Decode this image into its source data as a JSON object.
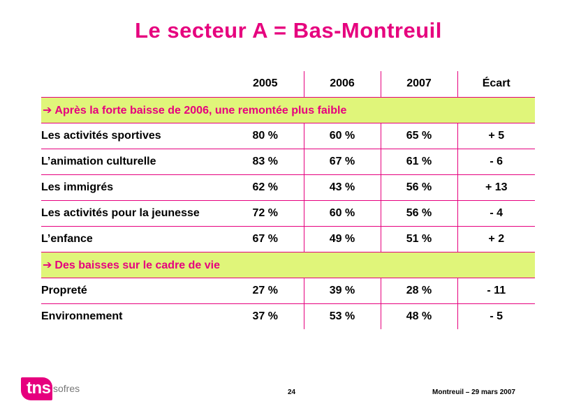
{
  "title": "Le secteur A = Bas-Montreuil",
  "table": {
    "headers": [
      "2005",
      "2006",
      "2007",
      "Écart"
    ],
    "sections": [
      {
        "heading": "Après la forte baisse de 2006, une remontée plus faible",
        "rows": [
          {
            "label": "Les activités sportives",
            "v2005": "80 %",
            "v2006": "60 %",
            "v2007": "65 %",
            "ecart": "+ 5"
          },
          {
            "label": "L’animation culturelle",
            "v2005": "83 %",
            "v2006": "67 %",
            "v2007": "61 %",
            "ecart": "- 6"
          },
          {
            "label": "Les immigrés",
            "v2005": "62 %",
            "v2006": "43 %",
            "v2007": "56 %",
            "ecart": "+ 13"
          },
          {
            "label": "Les activités pour la jeunesse",
            "v2005": "72 %",
            "v2006": "60 %",
            "v2007": "56 %",
            "ecart": "- 4"
          },
          {
            "label": "L’enfance",
            "v2005": "67 %",
            "v2006": "49 %",
            "v2007": "51 %",
            "ecart": "+ 2"
          }
        ]
      },
      {
        "heading": "Des baisses sur le cadre de vie",
        "rows": [
          {
            "label": "Propreté",
            "v2005": "27 %",
            "v2006": "39 %",
            "v2007": "28 %",
            "ecart": "- 11"
          },
          {
            "label": "Environnement",
            "v2005": "37 %",
            "v2006": "53 %",
            "v2007": "48 %",
            "ecart": "- 5"
          }
        ]
      }
    ]
  },
  "section_arrow": "➔",
  "logo": {
    "tns": "tns",
    "sofres": "sofres"
  },
  "footer": {
    "page": "24",
    "right": "Montreuil – 29 mars 2007"
  },
  "colors": {
    "accent": "#e6007e",
    "section_bg": "#e0f57a"
  }
}
